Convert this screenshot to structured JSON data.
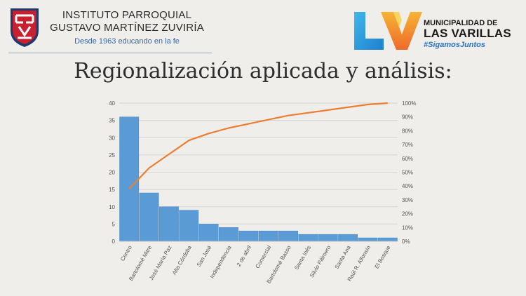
{
  "header": {
    "institution_line1": "INSTITUTO PARROQUIAL",
    "institution_line2": "GUSTAVO MARTÍNEZ ZUVIRÍA",
    "tagline": "Desde 1963 educando en la fe",
    "municipality_line1": "MUNICIPALIDAD DE",
    "municipality_line2": "LAS VARILLAS",
    "hashtag": "#SigamosJuntos"
  },
  "slide": {
    "title": "Regionalización aplicada y análisis:"
  },
  "colors": {
    "bar": "#5b9bd5",
    "line": "#ed7d31",
    "grid": "#d4d4d4",
    "shield_red": "#c8202f",
    "logo_orange": "#f39323",
    "logo_blue": "#2a9be0"
  },
  "chart_data": {
    "type": "bar",
    "categories": [
      "Centro",
      "Bartolomé Mitre",
      "José María Paz",
      "Alta Córdoba",
      "San José",
      "Independencia",
      "2 de abril",
      "Comercial",
      "Bartolomé Basso",
      "Santa Inés",
      "Silvio Pálmero",
      "Santa Ana",
      "Raúl R. Alfonsín",
      "El Bosque"
    ],
    "series": [
      {
        "type": "bar",
        "axis": "left",
        "values": [
          36,
          14,
          10,
          9,
          5,
          4,
          3,
          3,
          3,
          2,
          2,
          2,
          1,
          1
        ]
      },
      {
        "type": "line",
        "axis": "right",
        "values": [
          0.38,
          0.53,
          0.63,
          0.73,
          0.78,
          0.82,
          0.85,
          0.88,
          0.91,
          0.93,
          0.95,
          0.97,
          0.99,
          1.0
        ]
      }
    ],
    "ylim": [
      0,
      40
    ],
    "yticks": [
      0,
      5,
      10,
      15,
      20,
      25,
      30,
      35,
      40
    ],
    "y2lim": [
      0,
      1
    ],
    "y2ticks": [
      "0%",
      "10%",
      "20%",
      "30%",
      "40%",
      "50%",
      "60%",
      "70%",
      "80%",
      "90%",
      "100%"
    ],
    "grid": true
  }
}
